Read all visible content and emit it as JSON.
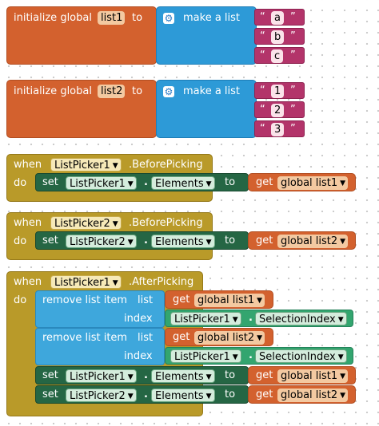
{
  "globals": [
    {
      "init_label": "initialize global",
      "name": "list1",
      "to_label": "to",
      "make_list_label": "make a list",
      "items": [
        "a",
        "b",
        "c"
      ]
    },
    {
      "init_label": "initialize global",
      "name": "list2",
      "to_label": "to",
      "make_list_label": "make a list",
      "items": [
        "1",
        "2",
        "3"
      ]
    }
  ],
  "quote_open": "“",
  "quote_close": "”",
  "before_picking": [
    {
      "when_label": "when",
      "component": "ListPicker1",
      "event": ".BeforePicking",
      "do_label": "do",
      "set_label": "set",
      "set_component": "ListPicker1",
      "property": "Elements",
      "to_label": "to",
      "get_label": "get",
      "get_var": "global list1"
    },
    {
      "when_label": "when",
      "component": "ListPicker2",
      "event": ".BeforePicking",
      "do_label": "do",
      "set_label": "set",
      "set_component": "ListPicker2",
      "property": "Elements",
      "to_label": "to",
      "get_label": "get",
      "get_var": "global list2"
    }
  ],
  "after_picking": {
    "when_label": "when",
    "component": "ListPicker1",
    "event": ".AfterPicking",
    "do_label": "do",
    "removes": [
      {
        "label": "remove list item",
        "list_label": "list",
        "get_label": "get",
        "get_var": "global list1",
        "index_label": "index",
        "comp": "ListPicker1",
        "prop": "SelectionIndex"
      },
      {
        "label": "remove list item",
        "list_label": "list",
        "get_label": "get",
        "get_var": "global list2",
        "index_label": "index",
        "comp": "ListPicker1",
        "prop": "SelectionIndex"
      }
    ],
    "sets": [
      {
        "set_label": "set",
        "component": "ListPicker1",
        "property": "Elements",
        "to_label": "to",
        "get_label": "get",
        "get_var": "global list1"
      },
      {
        "set_label": "set",
        "component": "ListPicker2",
        "property": "Elements",
        "to_label": "to",
        "get_label": "get",
        "get_var": "global list2"
      }
    ]
  },
  "colors": {
    "variables": "#d3612e",
    "lists": "#2d9ad7",
    "text": "#b3346a",
    "events": "#b99a29",
    "setters": "#256644",
    "getters": "#33a56f"
  },
  "icons": {
    "mutator": "gear-icon",
    "dropdown": "dropdown-arrow-icon"
  }
}
